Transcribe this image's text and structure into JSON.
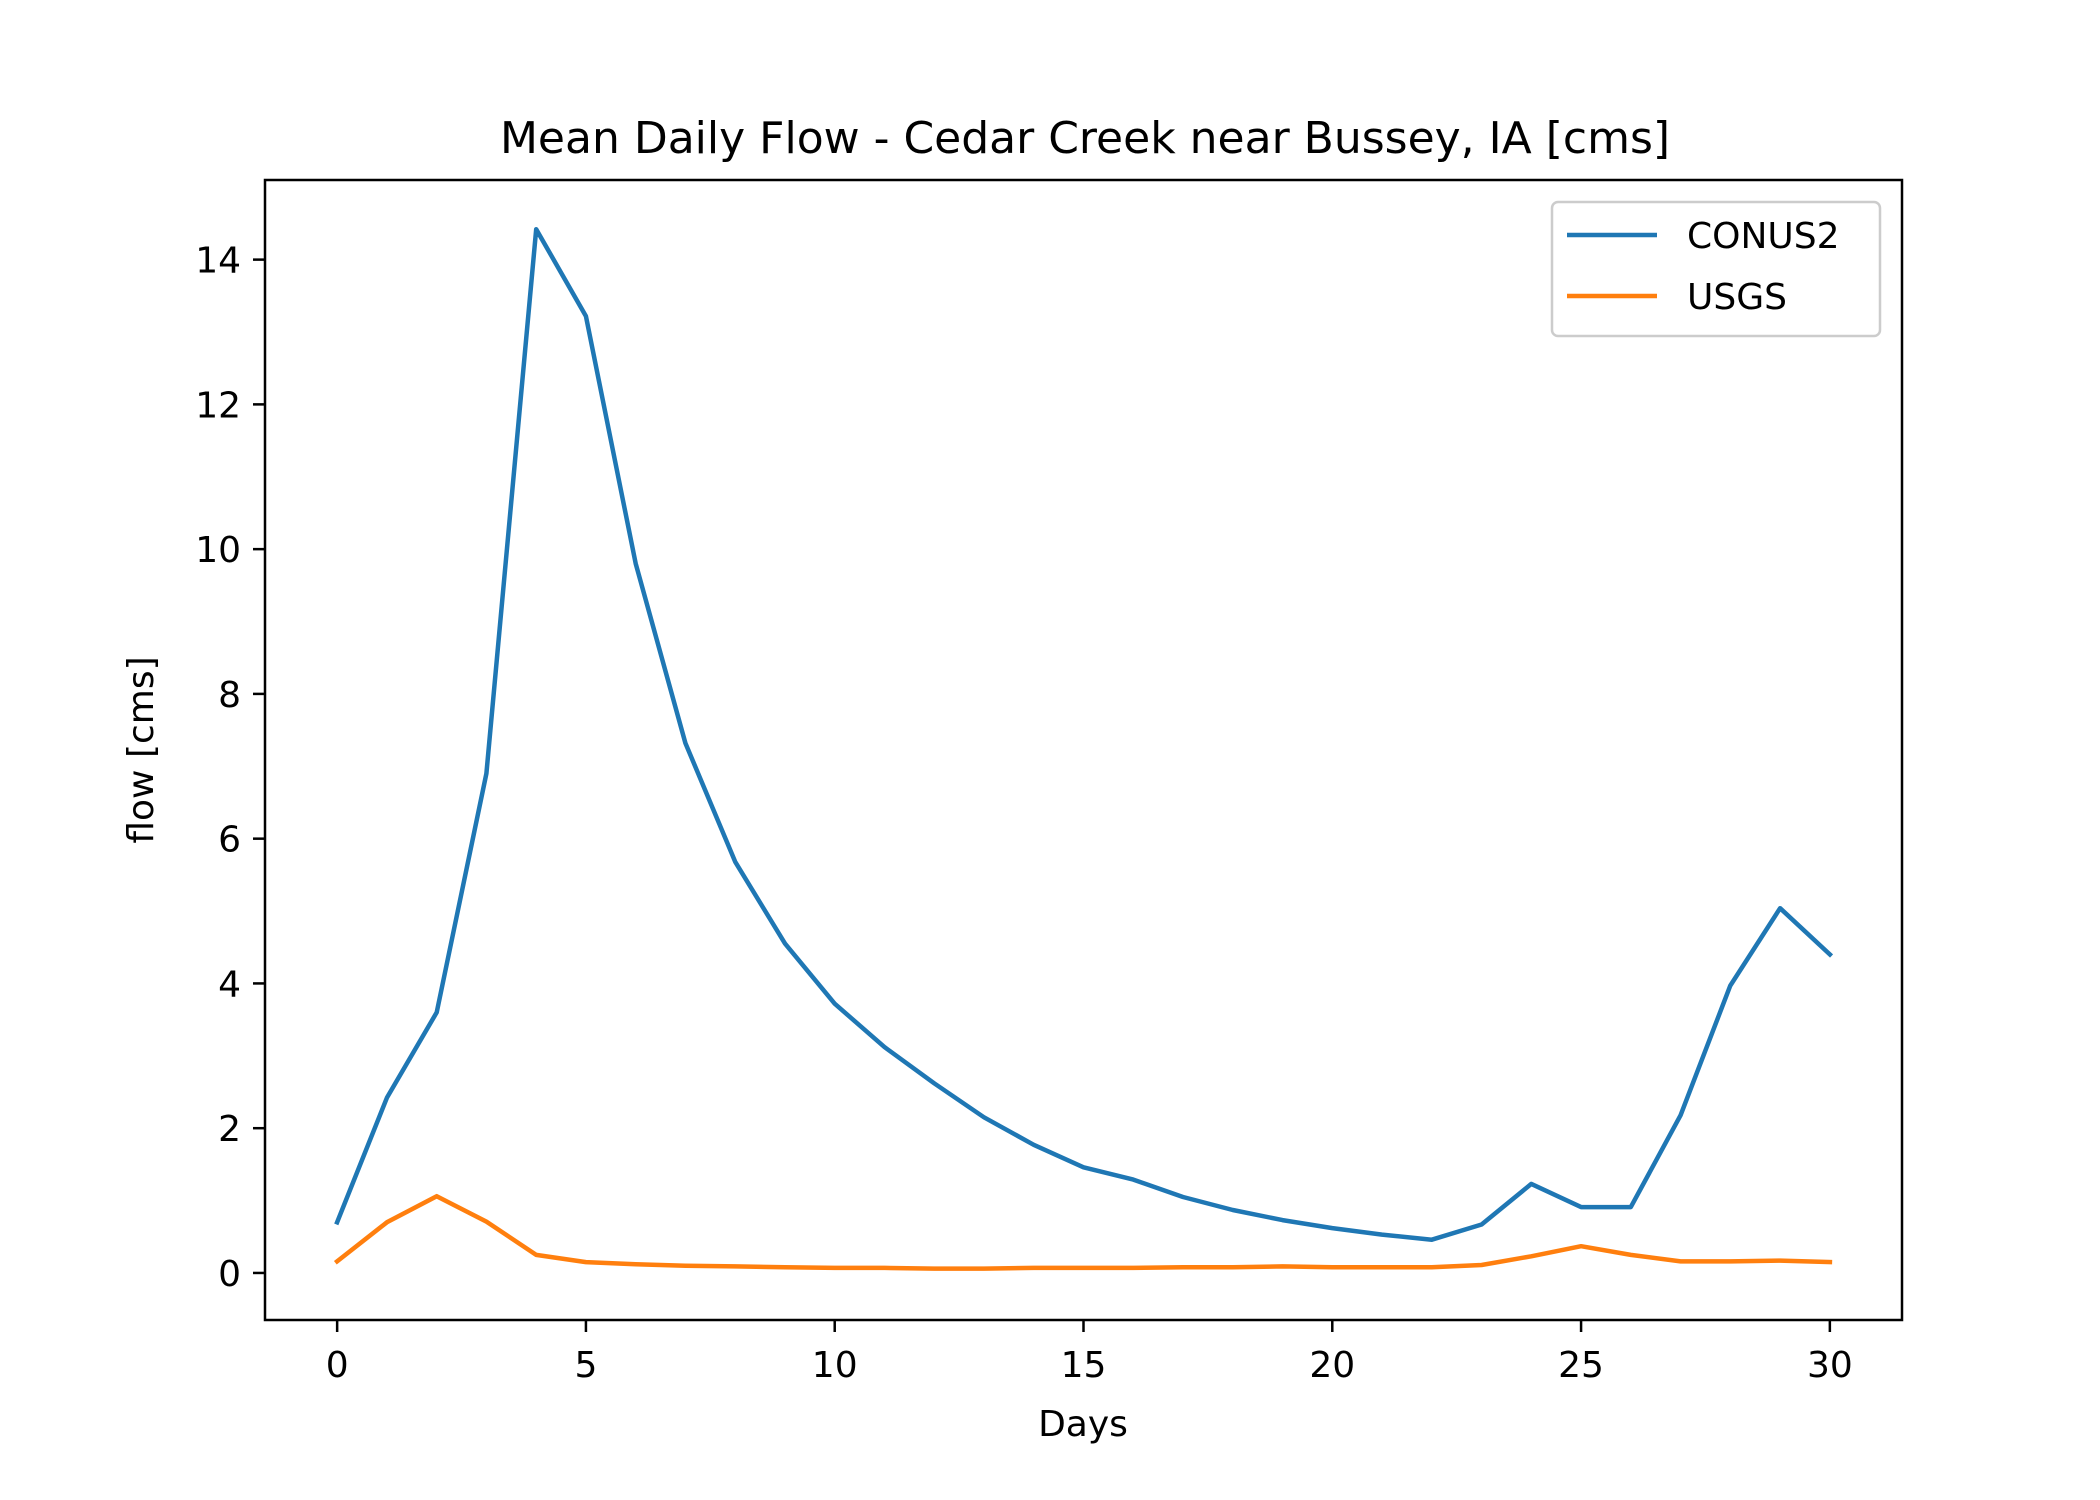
{
  "chart_data": {
    "type": "line",
    "title": "Mean Daily Flow - Cedar Creek near Bussey, IA [cms]",
    "xlabel": "Days",
    "ylabel": "flow [cms]",
    "xlim": [
      -1.45,
      31.45
    ],
    "ylim": [
      -0.65,
      15.1
    ],
    "xticks": [
      0,
      5,
      10,
      15,
      20,
      25,
      30
    ],
    "yticks": [
      0,
      2,
      4,
      6,
      8,
      10,
      12,
      14
    ],
    "grid": false,
    "legend_position": "top-right",
    "x": [
      0,
      1,
      2,
      3,
      4,
      5,
      6,
      7,
      8,
      9,
      10,
      11,
      12,
      13,
      14,
      15,
      16,
      17,
      18,
      19,
      20,
      21,
      22,
      23,
      24,
      25,
      26,
      27,
      28,
      29,
      30
    ],
    "series": [
      {
        "name": "CONUS2",
        "color": "#1f77b4",
        "values": [
          0.7,
          2.42,
          3.6,
          6.9,
          14.42,
          13.22,
          9.8,
          7.32,
          5.68,
          4.55,
          3.72,
          3.12,
          2.62,
          2.15,
          1.77,
          1.46,
          1.29,
          1.05,
          0.87,
          0.73,
          0.62,
          0.53,
          0.46,
          0.67,
          1.23,
          0.91,
          0.91,
          2.18,
          3.97,
          5.04,
          4.4
        ]
      },
      {
        "name": "USGS",
        "color": "#ff7f0e",
        "values": [
          0.16,
          0.7,
          1.06,
          0.71,
          0.25,
          0.15,
          0.12,
          0.1,
          0.09,
          0.08,
          0.07,
          0.07,
          0.06,
          0.06,
          0.07,
          0.07,
          0.07,
          0.08,
          0.08,
          0.09,
          0.08,
          0.08,
          0.08,
          0.11,
          0.23,
          0.37,
          0.25,
          0.16,
          0.16,
          0.17,
          0.15
        ]
      }
    ]
  }
}
